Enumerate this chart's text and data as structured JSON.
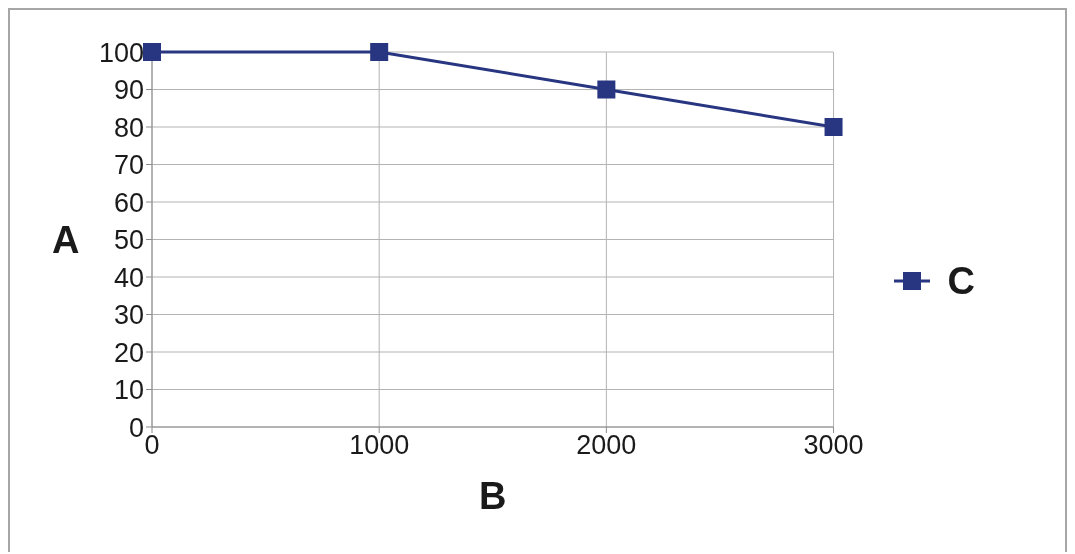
{
  "chart_data": {
    "type": "line",
    "xlabel": "B",
    "ylabel": "A",
    "x": [
      0,
      1000,
      2000,
      3000
    ],
    "series": [
      {
        "name": "C",
        "color": "#283580",
        "values": [
          100,
          100,
          90,
          80
        ]
      }
    ],
    "xlim": [
      0,
      3000
    ],
    "xticks": [
      0,
      1000,
      2000,
      3000
    ],
    "ylim": [
      0,
      100
    ],
    "yticks": [
      0,
      10,
      20,
      30,
      40,
      50,
      60,
      70,
      80,
      90,
      100
    ],
    "grid": true,
    "legend": "right",
    "marker": "square",
    "line_style": "solid"
  }
}
